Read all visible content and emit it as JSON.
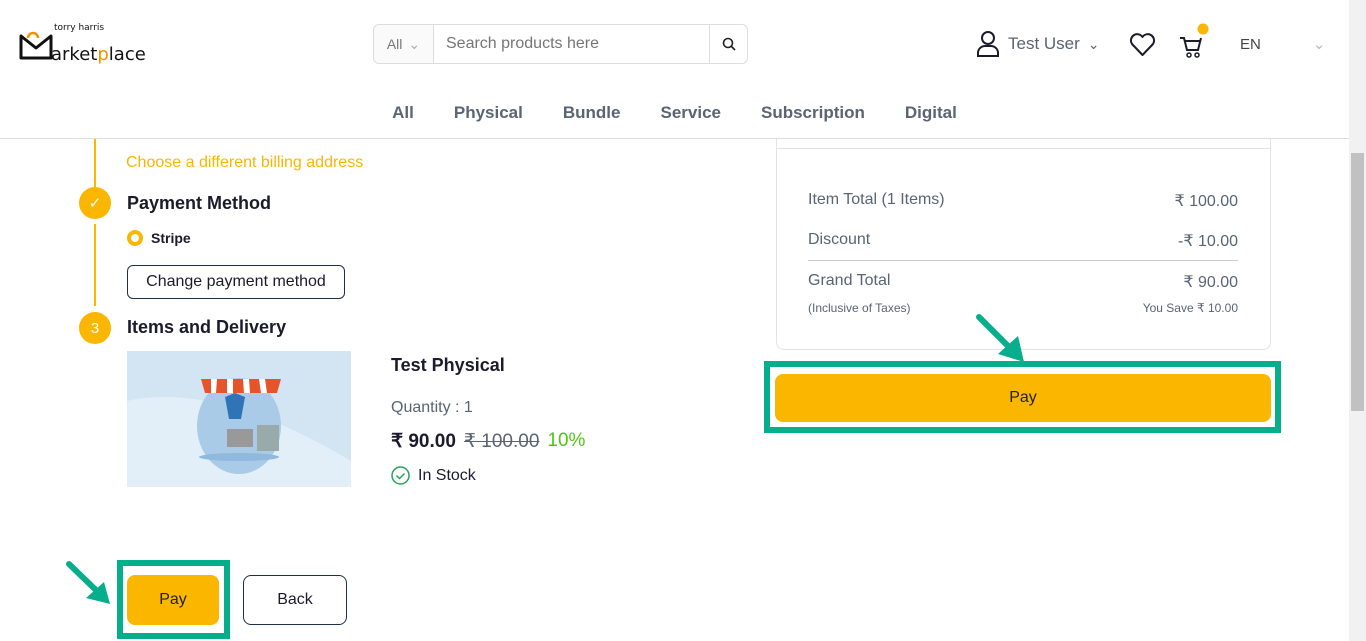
{
  "header": {
    "logo_text": "torry harris Marketplace",
    "search": {
      "category": "All",
      "placeholder": "Search products here"
    },
    "user": "Test User",
    "language": "EN",
    "colors": {
      "accent": "#fbb600",
      "highlight": "#07ae8c"
    }
  },
  "nav": [
    "All",
    "Physical",
    "Bundle",
    "Service",
    "Subscription",
    "Digital"
  ],
  "checkout": {
    "billing_link": "Choose a different billing address",
    "payment": {
      "title": "Payment Method",
      "method": "Stripe",
      "change_label": "Change payment method"
    },
    "items": {
      "step": "3",
      "title": "Items and Delivery",
      "product": {
        "name": "Test Physical",
        "quantity": "Quantity : 1",
        "price": "₹ 90.00",
        "original_price": "₹ 100.00",
        "discount": "10%",
        "stock": "In Stock"
      }
    },
    "pay_label": "Pay",
    "back_label": "Back"
  },
  "summary": {
    "item_total_label": "Item Total (1 Items)",
    "item_total": "₹ 100.00",
    "discount_label": "Discount",
    "discount": "-₹ 10.00",
    "grand_total_label": "Grand Total",
    "grand_total": "₹ 90.00",
    "tax_note": "(Inclusive of Taxes)",
    "savings": "You Save ₹ 10.00",
    "pay_label": "Pay"
  }
}
